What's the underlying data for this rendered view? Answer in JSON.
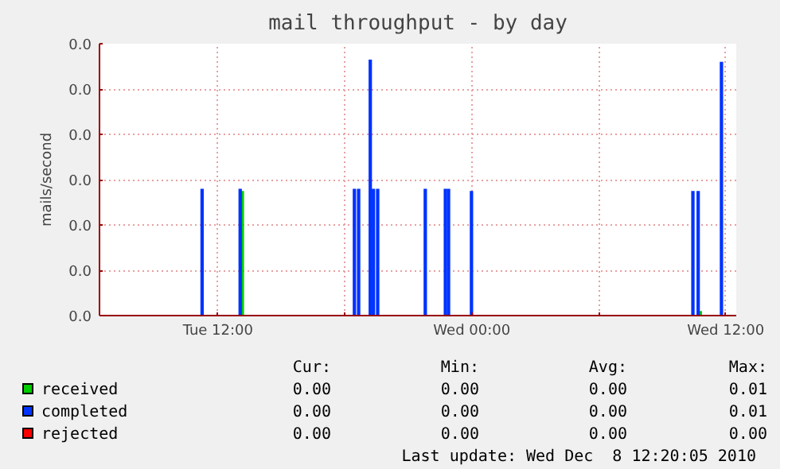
{
  "chart_data": {
    "type": "bar",
    "title": "mail throughput - by day",
    "ylabel": "mails/second",
    "x": [
      "2010-12-07T11:15",
      "2010-12-07T13:03",
      "2010-12-07T18:27",
      "2010-12-07T18:39",
      "2010-12-07T19:12",
      "2010-12-07T19:21",
      "2010-12-07T19:33",
      "2010-12-07T21:48",
      "2010-12-07T22:45",
      "2010-12-07T22:54",
      "2010-12-07T23:59",
      "2010-12-08T10:27",
      "2010-12-08T10:42",
      "2010-12-08T11:48"
    ],
    "series": [
      {
        "name": "received",
        "color": "#00cc00",
        "x": [
          "2010-12-07T13:09",
          "2010-12-08T10:48"
        ],
        "values": [
          0.0055,
          0.0002
        ]
      },
      {
        "name": "completed",
        "color": "#0033ff",
        "values": [
          0.0056,
          0.0056,
          0.0056,
          0.0056,
          0.0113,
          0.0056,
          0.0056,
          0.0056,
          0.0056,
          0.0056,
          0.0055,
          0.0055,
          0.0055,
          0.0112
        ]
      },
      {
        "name": "rejected",
        "color": "#ff0000",
        "values": [
          0,
          0,
          0,
          0,
          0,
          0,
          0,
          0,
          0,
          0,
          0,
          0,
          0,
          0
        ]
      }
    ],
    "xlim": [
      "2010-12-07T06:24",
      "2010-12-08T12:30"
    ],
    "xticks": [
      {
        "value": "2010-12-07T12:00",
        "label": "Tue 12:00"
      },
      {
        "value": "2010-12-07T18:00",
        "label": null
      },
      {
        "value": "2010-12-08T00:00",
        "label": "Wed 00:00"
      },
      {
        "value": "2010-12-08T06:00",
        "label": null
      },
      {
        "value": "2010-12-08T12:00",
        "label": "Wed 12:00"
      }
    ],
    "ylim": [
      0,
      0.012
    ],
    "yticks": [
      {
        "value": 0,
        "label": "0.0"
      },
      {
        "value": 0.002,
        "label": "0.0"
      },
      {
        "value": 0.004,
        "label": "0.0"
      },
      {
        "value": 0.006,
        "label": "0.0"
      },
      {
        "value": 0.008,
        "label": "0.0"
      },
      {
        "value": 0.01,
        "label": "0.0"
      },
      {
        "value": 0.012,
        "label": "0.0"
      }
    ],
    "grid": true,
    "legend": "bottom",
    "annotations": [
      "Cur:",
      "Min:",
      "Avg:",
      "Max:",
      "0.00",
      "0.00",
      "0.00",
      "0.01",
      "0.00",
      "0.00",
      "0.00",
      "0.01",
      "0.00",
      "0.00",
      "0.00",
      "0.00",
      "Last update: Wed Dec  8 12:20:05 2010"
    ]
  }
}
